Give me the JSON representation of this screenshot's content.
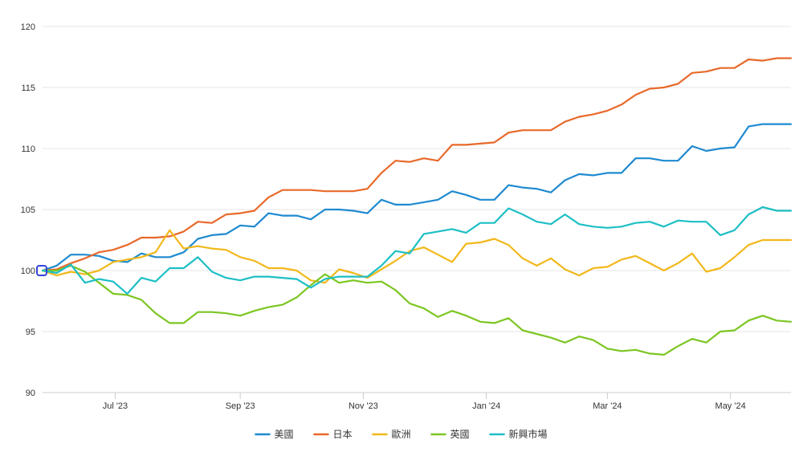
{
  "chart_data": {
    "type": "line",
    "title": "",
    "xlabel": "",
    "ylabel": "",
    "ylim": [
      90,
      120
    ],
    "yticks": [
      90,
      95,
      100,
      105,
      110,
      115,
      120
    ],
    "xlim": [
      "2023-05-26",
      "2024-05-31"
    ],
    "xticks": [
      {
        "date": "2023-07-01",
        "label": "Jul '23"
      },
      {
        "date": "2023-09-01",
        "label": "Sep '23"
      },
      {
        "date": "2023-11-01",
        "label": "Nov '23"
      },
      {
        "date": "2024-01-01",
        "label": "Jan '24"
      },
      {
        "date": "2024-03-01",
        "label": "Mar '24"
      },
      {
        "date": "2024-05-01",
        "label": "May '24"
      }
    ],
    "grid": true,
    "legend_position": "bottom",
    "x": [
      "2023-05-26",
      "2023-06-02",
      "2023-06-09",
      "2023-06-16",
      "2023-06-23",
      "2023-06-30",
      "2023-07-07",
      "2023-07-14",
      "2023-07-21",
      "2023-07-28",
      "2023-08-04",
      "2023-08-11",
      "2023-08-18",
      "2023-08-25",
      "2023-09-01",
      "2023-09-08",
      "2023-09-15",
      "2023-09-22",
      "2023-09-29",
      "2023-10-06",
      "2023-10-13",
      "2023-10-20",
      "2023-10-27",
      "2023-11-03",
      "2023-11-10",
      "2023-11-17",
      "2023-11-24",
      "2023-12-01",
      "2023-12-08",
      "2023-12-15",
      "2023-12-22",
      "2023-12-29",
      "2024-01-05",
      "2024-01-12",
      "2024-01-19",
      "2024-01-26",
      "2024-02-02",
      "2024-02-09",
      "2024-02-16",
      "2024-02-23",
      "2024-03-01",
      "2024-03-08",
      "2024-03-15",
      "2024-03-22",
      "2024-03-29",
      "2024-04-05",
      "2024-04-12",
      "2024-04-19",
      "2024-04-26",
      "2024-05-03",
      "2024-05-10",
      "2024-05-17",
      "2024-05-24",
      "2024-05-31"
    ],
    "series": [
      {
        "name": "美國",
        "color": "#1f8ad0",
        "values": [
          100.0,
          100.4,
          101.3,
          101.3,
          101.2,
          100.8,
          100.7,
          101.4,
          101.1,
          101.1,
          101.5,
          102.6,
          102.9,
          103.0,
          103.7,
          103.6,
          104.7,
          104.5,
          104.5,
          104.2,
          105.0,
          105.0,
          104.9,
          104.7,
          105.8,
          105.4,
          105.4,
          105.6,
          105.8,
          106.5,
          106.2,
          105.8,
          105.8,
          107.0,
          106.8,
          106.7,
          106.4,
          107.4,
          107.9,
          107.8,
          108.0,
          108.0,
          109.2,
          109.2,
          109.0,
          109.0,
          110.2,
          109.8,
          110.0,
          110.1,
          111.8,
          112.0,
          112.0,
          112.0
        ]
      },
      {
        "name": "日本",
        "color": "#e8692a",
        "values": [
          100.0,
          100.1,
          100.6,
          101.0,
          101.5,
          101.7,
          102.1,
          102.7,
          102.7,
          102.8,
          103.2,
          104.0,
          103.9,
          104.6,
          104.7,
          104.9,
          106.0,
          106.6,
          106.6,
          106.6,
          106.5,
          106.5,
          106.5,
          106.7,
          108.0,
          109.0,
          108.9,
          109.2,
          109.0,
          110.3,
          110.3,
          110.4,
          110.5,
          111.3,
          111.5,
          111.5,
          111.5,
          112.2,
          112.6,
          112.8,
          113.1,
          113.6,
          114.4,
          114.9,
          115.0,
          115.3,
          116.2,
          116.3,
          116.6,
          116.6,
          117.3,
          117.2,
          117.4,
          117.4
        ]
      },
      {
        "name": "歐洲",
        "color": "#f2b81b",
        "values": [
          100.0,
          99.6,
          99.9,
          99.7,
          100.0,
          100.7,
          100.9,
          101.1,
          101.5,
          103.3,
          101.8,
          102.0,
          101.8,
          101.7,
          101.1,
          100.8,
          100.2,
          100.2,
          100.0,
          99.2,
          99.0,
          100.1,
          99.8,
          99.4,
          100.1,
          100.8,
          101.6,
          101.9,
          101.3,
          100.7,
          102.2,
          102.3,
          102.6,
          102.1,
          101.0,
          100.4,
          101.0,
          100.1,
          99.6,
          100.2,
          100.3,
          100.9,
          101.2,
          100.6,
          100.0,
          100.6,
          101.4,
          99.9,
          100.2,
          101.1,
          102.1,
          102.5,
          102.5,
          102.5
        ]
      },
      {
        "name": "英國",
        "color": "#7cc622",
        "values": [
          100.0,
          100.0,
          100.4,
          99.9,
          99.0,
          98.1,
          98.0,
          97.6,
          96.5,
          95.7,
          95.7,
          96.6,
          96.6,
          96.5,
          96.3,
          96.7,
          97.0,
          97.2,
          97.8,
          98.8,
          99.7,
          99.0,
          99.2,
          99.0,
          99.1,
          98.4,
          97.3,
          96.9,
          96.2,
          96.7,
          96.3,
          95.8,
          95.7,
          96.1,
          95.1,
          94.8,
          94.5,
          94.1,
          94.6,
          94.3,
          93.6,
          93.4,
          93.5,
          93.2,
          93.1,
          93.8,
          94.4,
          94.1,
          95.0,
          95.1,
          95.9,
          96.3,
          95.9,
          95.8
        ]
      },
      {
        "name": "新興市場",
        "color": "#1dbfc5",
        "values": [
          100.0,
          99.8,
          100.5,
          99.0,
          99.3,
          99.1,
          98.1,
          99.4,
          99.1,
          100.2,
          100.2,
          101.1,
          99.9,
          99.4,
          99.2,
          99.5,
          99.5,
          99.4,
          99.3,
          98.6,
          99.3,
          99.5,
          99.5,
          99.5,
          100.4,
          101.6,
          101.4,
          103.0,
          103.2,
          103.4,
          103.1,
          103.9,
          103.9,
          105.1,
          104.6,
          104.0,
          103.8,
          104.6,
          103.8,
          103.6,
          103.5,
          103.6,
          103.9,
          104.0,
          103.6,
          104.1,
          104.0,
          104.0,
          102.9,
          103.3,
          104.6,
          105.2,
          104.9,
          104.9
        ]
      }
    ]
  }
}
